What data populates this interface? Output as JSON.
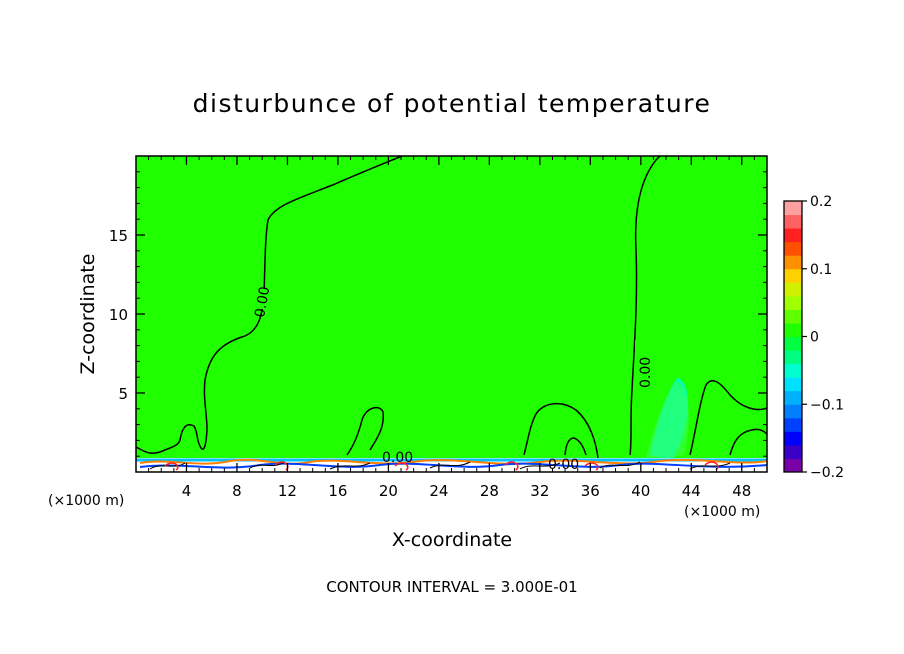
{
  "chart_data": {
    "type": "heatmap",
    "title": "disturbunce of potential temperature",
    "xlabel": "X-coordinate",
    "ylabel": "Z-coordinate",
    "x_unit": "(×1000 m)",
    "x_unit_right": "(×1000 m)",
    "xlim": [
      0,
      50
    ],
    "ylim": [
      0,
      20
    ],
    "x_ticks": [
      4,
      8,
      12,
      16,
      20,
      24,
      28,
      32,
      36,
      40,
      44,
      48
    ],
    "y_ticks": [
      5,
      10,
      15
    ],
    "footer": "CONTOUR INTERVAL = 3.000E-01",
    "background_value": 0.0,
    "contour_label": "0.00",
    "colorbar": {
      "min": -0.2,
      "max": 0.2,
      "tick_values": [
        0.2,
        0.1,
        0,
        -0.1,
        -0.2
      ],
      "tick_labels": [
        "0.2",
        "0.1",
        "0",
        "−0.1",
        "−0.2"
      ],
      "levels": [
        {
          "from": -0.2,
          "to": -0.18,
          "color": "#7a00a8"
        },
        {
          "from": -0.18,
          "to": -0.16,
          "color": "#3a00c8"
        },
        {
          "from": -0.16,
          "to": -0.14,
          "color": "#0000ff"
        },
        {
          "from": -0.14,
          "to": -0.12,
          "color": "#0040ff"
        },
        {
          "from": -0.12,
          "to": -0.1,
          "color": "#0080ff"
        },
        {
          "from": -0.1,
          "to": -0.08,
          "color": "#00b0ff"
        },
        {
          "from": -0.08,
          "to": -0.06,
          "color": "#00e0ff"
        },
        {
          "from": -0.06,
          "to": -0.04,
          "color": "#00ffd0"
        },
        {
          "from": -0.04,
          "to": -0.02,
          "color": "#00ff80"
        },
        {
          "from": -0.02,
          "to": 0.0,
          "color": "#00ff40"
        },
        {
          "from": 0.0,
          "to": 0.02,
          "color": "#20ff00"
        },
        {
          "from": 0.02,
          "to": 0.04,
          "color": "#60ff00"
        },
        {
          "from": 0.04,
          "to": 0.06,
          "color": "#a0ff00"
        },
        {
          "from": 0.06,
          "to": 0.08,
          "color": "#d0f000"
        },
        {
          "from": 0.08,
          "to": 0.1,
          "color": "#ffd000"
        },
        {
          "from": 0.1,
          "to": 0.12,
          "color": "#ff9000"
        },
        {
          "from": 0.12,
          "to": 0.14,
          "color": "#ff5000"
        },
        {
          "from": 0.14,
          "to": 0.16,
          "color": "#ff2020"
        },
        {
          "from": 0.16,
          "to": 0.18,
          "color": "#ff6060"
        },
        {
          "from": 0.18,
          "to": 0.2,
          "color": "#ffa0a0"
        }
      ]
    }
  }
}
